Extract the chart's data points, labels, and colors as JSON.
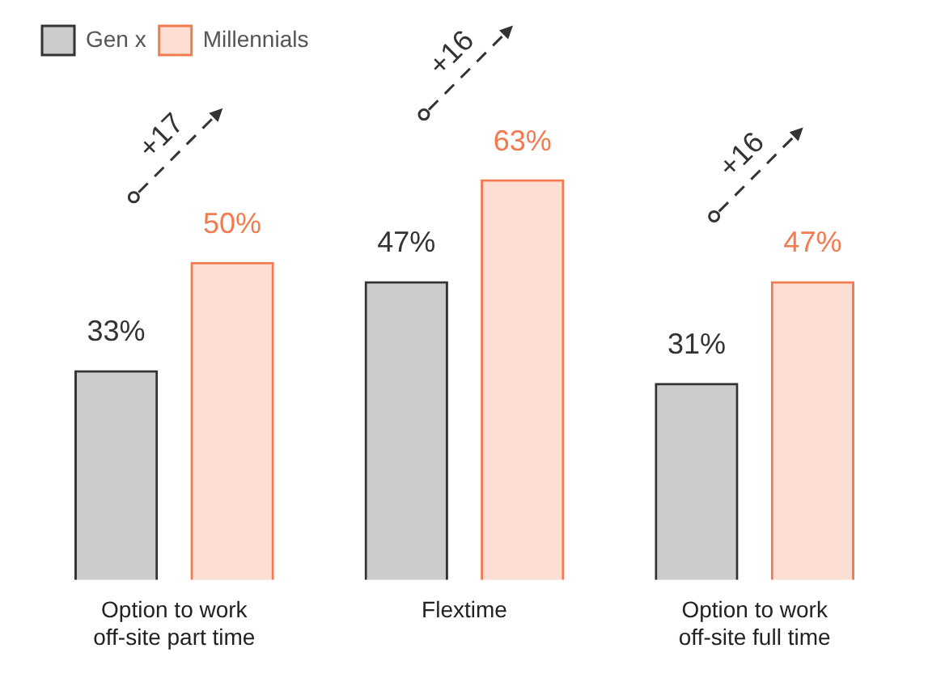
{
  "chart_data": {
    "type": "bar",
    "categories": [
      "Option to work off-site part time",
      "Flextime",
      "Option to work off-site full time"
    ],
    "series": [
      {
        "name": "Gen x",
        "color": "#333333",
        "values": [
          33,
          47,
          31
        ],
        "value_labels": [
          "33%",
          "47%",
          "31%"
        ]
      },
      {
        "name": "Millennials",
        "color": "#f47b4f",
        "values": [
          50,
          63,
          47
        ],
        "value_labels": [
          "50%",
          "63%",
          "47%"
        ]
      }
    ],
    "tick_labels": "x",
    "legend": "top left",
    "annotations": [
      "+17",
      "+16",
      "+16"
    ]
  }
}
